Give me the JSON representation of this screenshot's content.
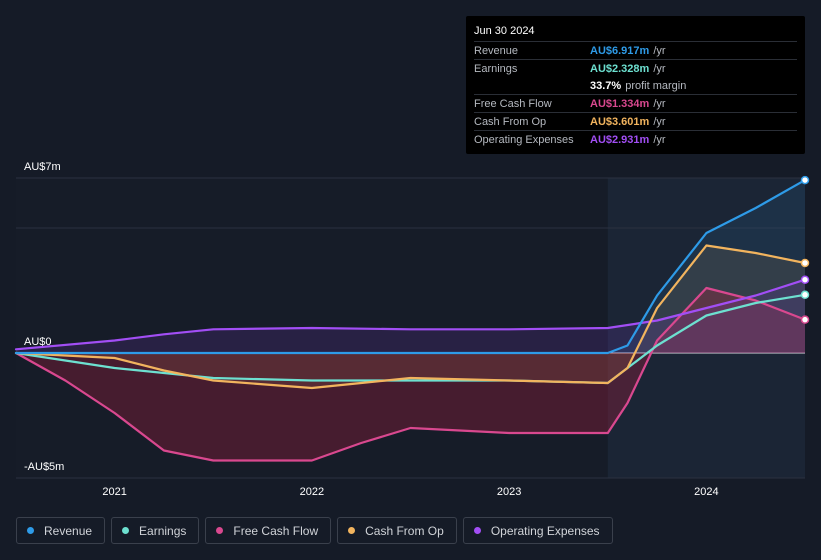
{
  "tooltip": {
    "date": "Jun 30 2024",
    "rows": [
      {
        "label": "Revenue",
        "value": "AU$6.917m",
        "unit": "/yr",
        "color": "#2e9be8"
      },
      {
        "label": "Earnings",
        "value": "AU$2.328m",
        "unit": "/yr",
        "color": "#6de0d0"
      },
      {
        "label": "",
        "value": "33.7%",
        "unit": "profit margin",
        "color": "#ffffff"
      },
      {
        "label": "Free Cash Flow",
        "value": "AU$1.334m",
        "unit": "/yr",
        "color": "#d9488f"
      },
      {
        "label": "Cash From Op",
        "value": "AU$3.601m",
        "unit": "/yr",
        "color": "#f2b45e"
      },
      {
        "label": "Operating Expenses",
        "value": "AU$2.931m",
        "unit": "/yr",
        "color": "#a24ef5"
      }
    ]
  },
  "chart_data": {
    "type": "line",
    "y_unit": "AU$ millions",
    "ylim": [
      -5,
      7
    ],
    "y_tick_labels": [
      "AU$7m",
      "AU$0",
      "-AU$5m"
    ],
    "x_tick_labels": [
      "2021",
      "2022",
      "2023",
      "2024"
    ],
    "xlim": [
      2020.5,
      2024.5
    ],
    "forecast_start": 2023.5,
    "series": [
      {
        "name": "Revenue",
        "color": "#2e9be8",
        "x": [
          2020.5,
          2021.0,
          2021.5,
          2022.0,
          2022.5,
          2023.0,
          2023.5,
          2023.6,
          2023.75,
          2024.0,
          2024.25,
          2024.5
        ],
        "values": [
          0.0,
          0.0,
          0.0,
          0.0,
          0.0,
          0.0,
          0.0,
          0.3,
          2.3,
          4.8,
          5.8,
          6.917
        ]
      },
      {
        "name": "Earnings",
        "color": "#6de0d0",
        "x": [
          2020.5,
          2021.0,
          2021.5,
          2022.0,
          2022.5,
          2023.0,
          2023.5,
          2023.75,
          2024.0,
          2024.25,
          2024.5
        ],
        "values": [
          0.0,
          -0.6,
          -1.0,
          -1.1,
          -1.1,
          -1.1,
          -1.2,
          0.3,
          1.5,
          2.0,
          2.328
        ]
      },
      {
        "name": "Free Cash Flow",
        "color": "#d9488f",
        "x": [
          2020.5,
          2020.75,
          2021.0,
          2021.25,
          2021.5,
          2022.0,
          2022.25,
          2022.5,
          2023.0,
          2023.5,
          2023.6,
          2023.75,
          2024.0,
          2024.25,
          2024.5
        ],
        "values": [
          0.0,
          -1.1,
          -2.4,
          -3.9,
          -4.3,
          -4.3,
          -3.6,
          -3.0,
          -3.2,
          -3.2,
          -2.0,
          0.5,
          2.6,
          2.1,
          1.334
        ]
      },
      {
        "name": "Cash From Op",
        "color": "#f2b45e",
        "x": [
          2020.5,
          2021.0,
          2021.25,
          2021.5,
          2022.0,
          2022.25,
          2022.5,
          2023.0,
          2023.5,
          2023.6,
          2023.75,
          2024.0,
          2024.25,
          2024.5
        ],
        "values": [
          0.0,
          -0.2,
          -0.7,
          -1.1,
          -1.4,
          -1.2,
          -1.0,
          -1.1,
          -1.2,
          -0.6,
          1.8,
          4.3,
          4.0,
          3.601
        ]
      },
      {
        "name": "Operating Expenses",
        "color": "#a24ef5",
        "x": [
          2020.5,
          2021.0,
          2021.25,
          2021.5,
          2022.0,
          2022.5,
          2023.0,
          2023.5,
          2023.75,
          2024.0,
          2024.25,
          2024.5
        ],
        "values": [
          0.15,
          0.5,
          0.75,
          0.95,
          1.0,
          0.95,
          0.95,
          1.0,
          1.3,
          1.8,
          2.3,
          2.931
        ]
      }
    ],
    "legend": [
      "Revenue",
      "Earnings",
      "Free Cash Flow",
      "Cash From Op",
      "Operating Expenses"
    ],
    "legend_placement": "bottom",
    "grid": true
  }
}
